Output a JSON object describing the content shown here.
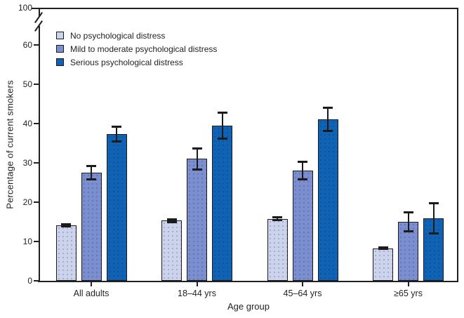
{
  "figure": {
    "background": "#ffffff",
    "text_color": "#231f20",
    "axis_color": "#231f20"
  },
  "chart_data": {
    "type": "bar",
    "title": "",
    "xlabel": "Age group",
    "ylabel": "Percentage of current smokers",
    "categories": [
      "All adults",
      "18–44 yrs",
      "45–64 yrs",
      "≥65 yrs"
    ],
    "series": [
      {
        "name": "No psychological distress",
        "color": "#ccd3ec",
        "values": [
          14.1,
          15.3,
          15.8,
          8.3
        ],
        "errors": [
          0.4,
          0.5,
          0.4,
          0.3
        ]
      },
      {
        "name": "Mild to moderate psychological distress",
        "color": "#7b8fd0",
        "values": [
          27.5,
          31.0,
          28.1,
          15.0
        ],
        "errors": [
          1.7,
          2.7,
          2.3,
          2.5
        ]
      },
      {
        "name": "Serious psychological distress",
        "color": "#0f62b4",
        "values": [
          37.3,
          39.4,
          41.1,
          15.9
        ],
        "errors": [
          2.0,
          3.4,
          3.0,
          3.9
        ]
      }
    ],
    "yticks": [
      0,
      10,
      20,
      30,
      40,
      50,
      60
    ],
    "ytick_break_top": 100,
    "axis_break": true,
    "error_bars": true,
    "grid": false,
    "legend_position": "top-left",
    "ylim_linear": [
      0,
      60
    ]
  }
}
